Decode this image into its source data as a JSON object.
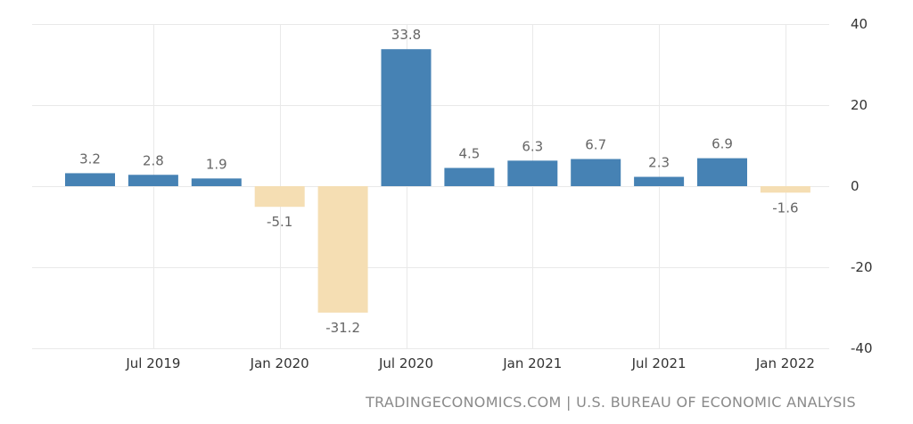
{
  "chart_data": {
    "type": "bar",
    "categories": [
      "Q2 2019",
      "Q3 2019",
      "Q4 2019",
      "Q1 2020",
      "Q2 2020",
      "Q3 2020",
      "Q4 2020",
      "Q1 2021",
      "Q2 2021",
      "Q3 2021",
      "Q4 2021",
      "Q1 2022"
    ],
    "values": [
      3.2,
      2.8,
      1.9,
      -5.1,
      -31.2,
      33.8,
      4.5,
      6.3,
      6.7,
      2.3,
      6.9,
      -1.6
    ],
    "data_labels": [
      "3.2",
      "2.8",
      "1.9",
      "-5.1",
      "-31.2",
      "33.8",
      "4.5",
      "6.3",
      "6.7",
      "2.3",
      "6.9",
      "-1.6"
    ],
    "x_ticks": [
      {
        "label": "Jul 2019",
        "category_index": 1
      },
      {
        "label": "Jan 2020",
        "category_index": 3
      },
      {
        "label": "Jul 2020",
        "category_index": 5
      },
      {
        "label": "Jan 2021",
        "category_index": 7
      },
      {
        "label": "Jul 2021",
        "category_index": 9
      },
      {
        "label": "Jan 2022",
        "category_index": 11
      }
    ],
    "y_ticks": [
      40,
      20,
      0,
      -20,
      -40
    ],
    "ylim": [
      -40,
      40
    ],
    "title": "",
    "xlabel": "",
    "ylabel": "",
    "grid": true,
    "y_axis_side": "right",
    "colors": {
      "positive": "#4682b4",
      "negative": "#f5deb3",
      "grid": "#e9e9e9"
    }
  },
  "source_text": "TRADINGECONOMICS.COM | U.S. BUREAU OF ECONOMIC ANALYSIS"
}
